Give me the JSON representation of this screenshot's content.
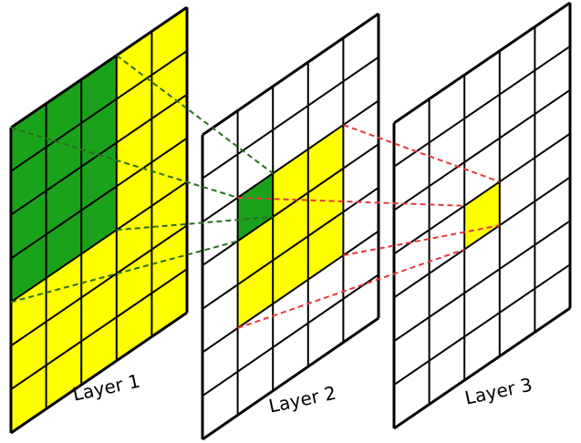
{
  "layers": [
    {
      "label": "Layer 1"
    },
    {
      "label": "Layer 2"
    },
    {
      "label": "Layer 3"
    }
  ]
}
